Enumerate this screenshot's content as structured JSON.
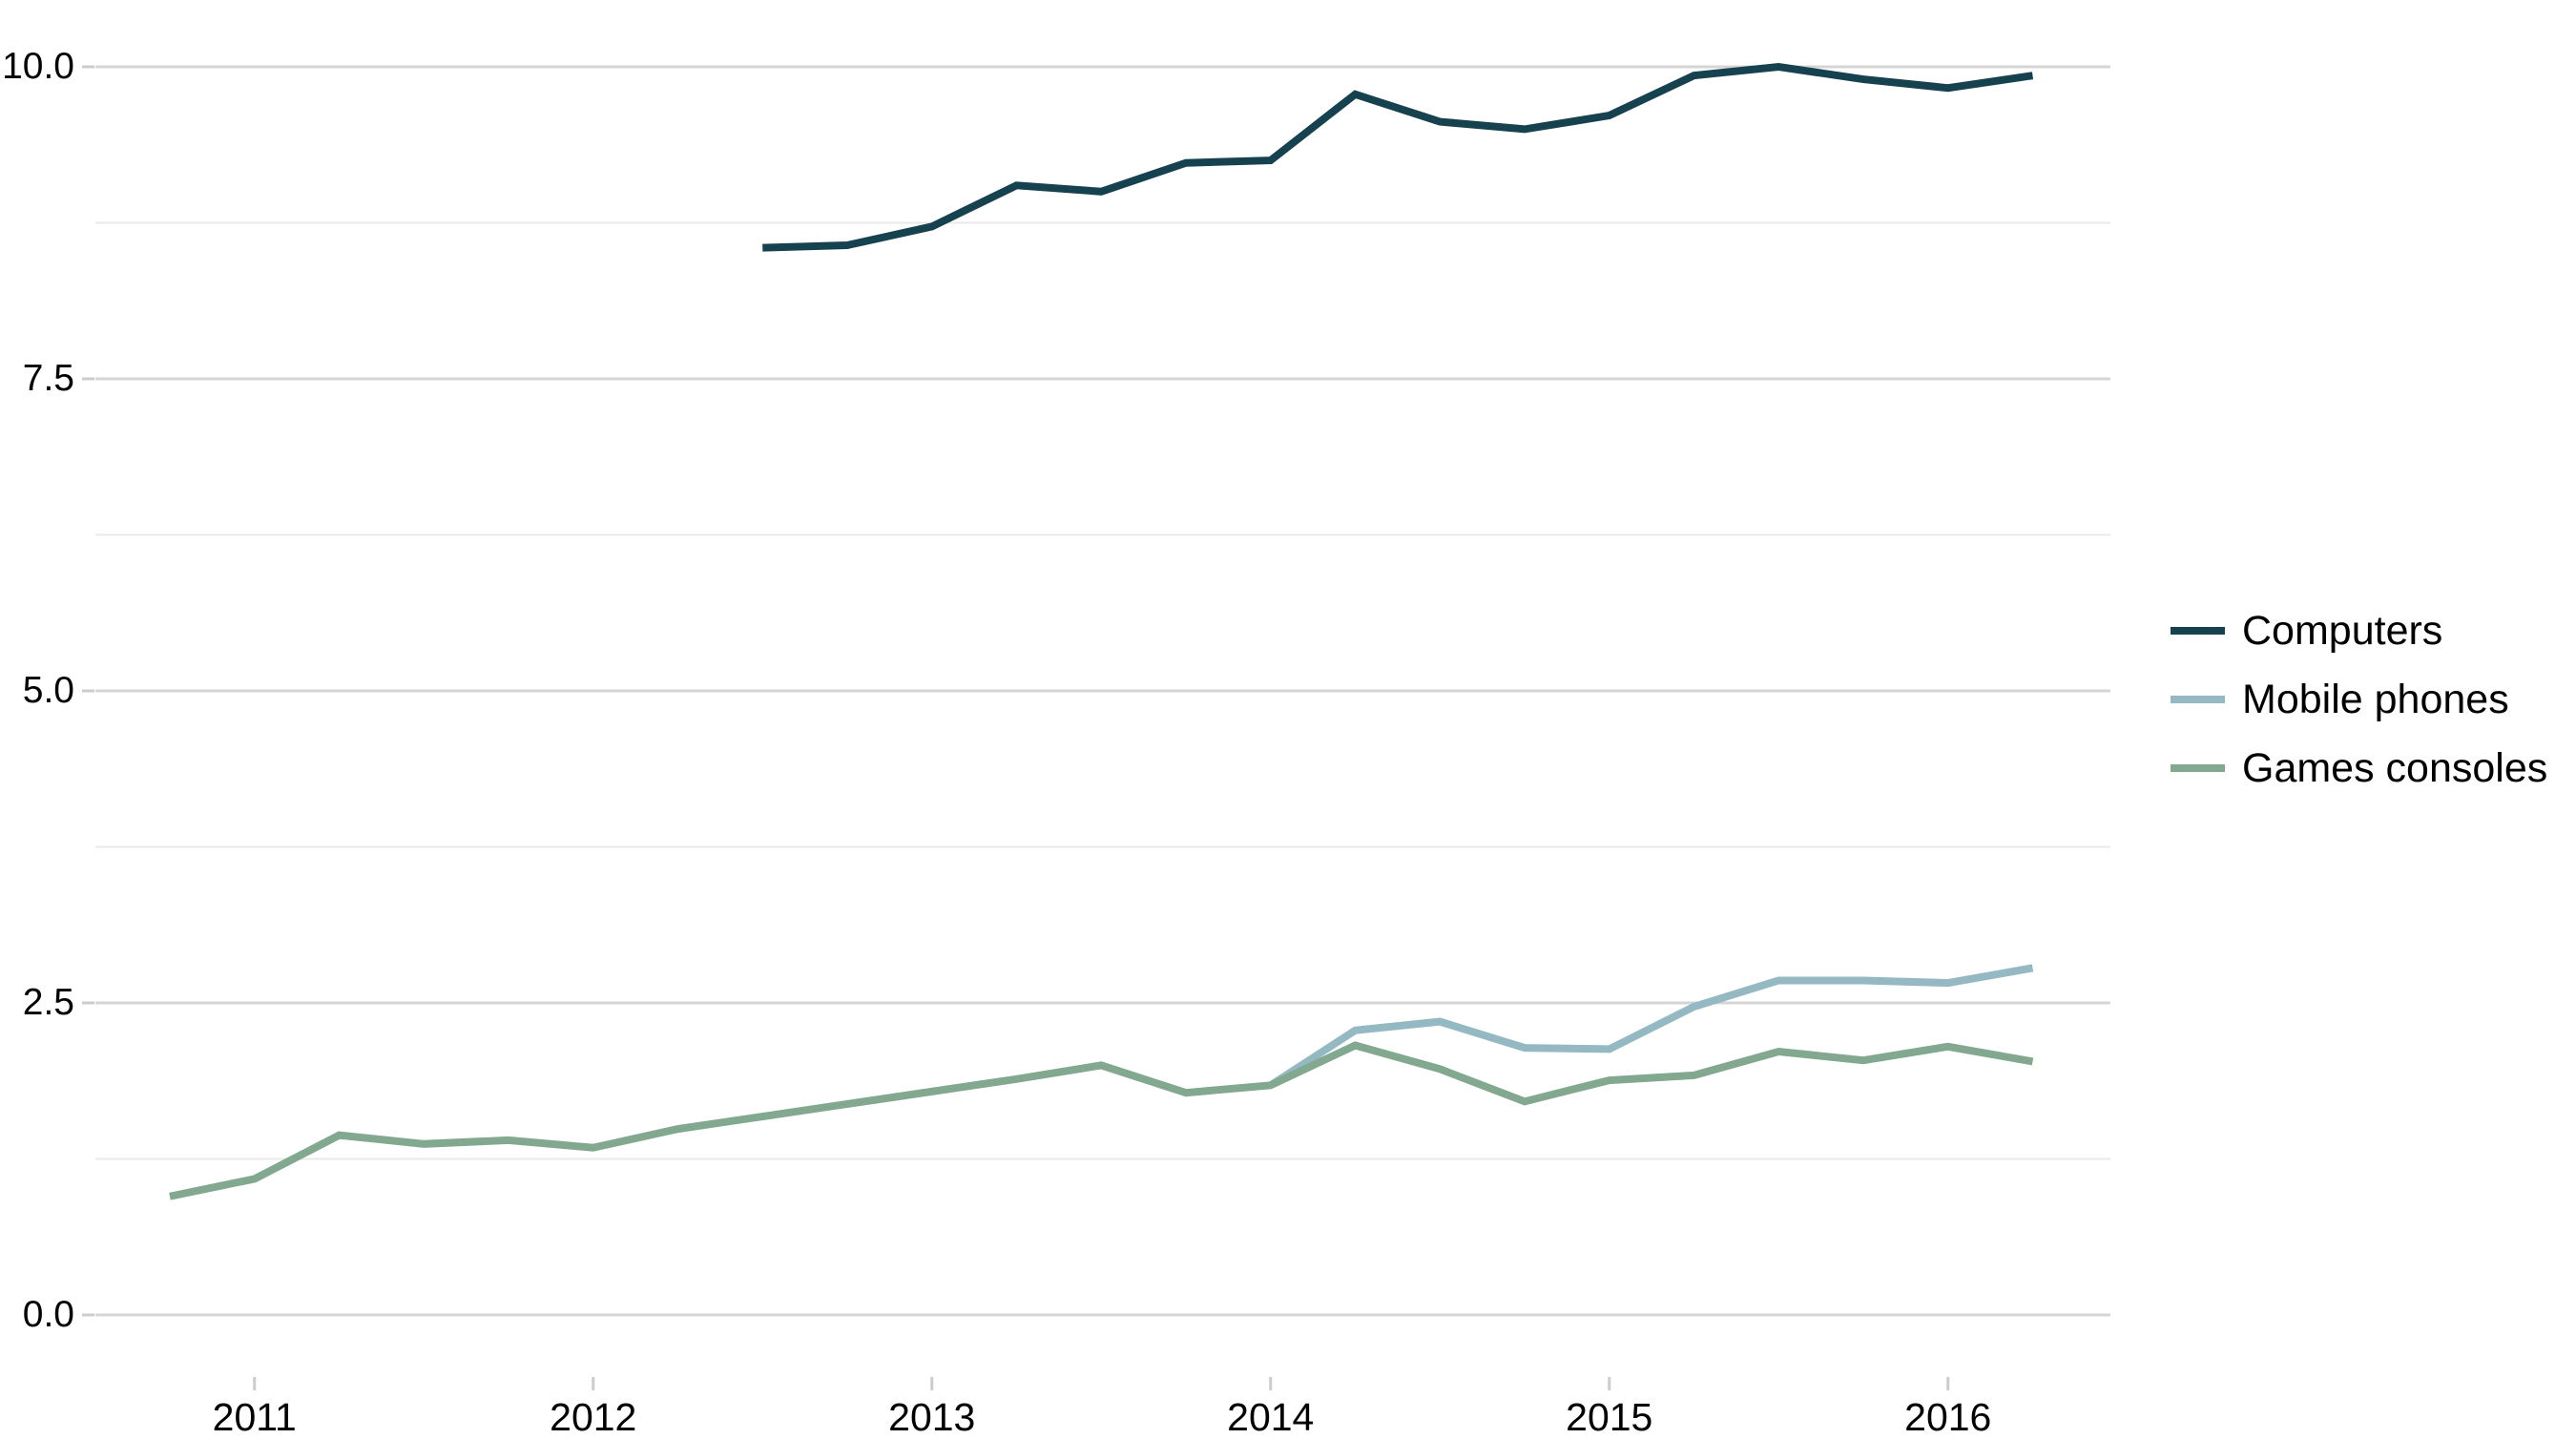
{
  "chart_data": {
    "type": "line",
    "title": "",
    "xlabel": "",
    "ylabel": "",
    "grid": true,
    "legend_position": "right",
    "xlim": [
      2010.5,
      2016.5
    ],
    "ylim": [
      0,
      10
    ],
    "x_tick_labels": [
      "2011",
      "2012",
      "2013",
      "2014",
      "2015",
      "2016"
    ],
    "x_tick_values": [
      2011,
      2012,
      2013,
      2014,
      2015,
      2016
    ],
    "y_tick_labels": [
      "0.0",
      "2.5",
      "5.0",
      "7.5",
      "10.0"
    ],
    "y_tick_values": [
      0,
      2.5,
      5,
      7.5,
      10
    ],
    "y_minor_tick_values": [
      1.25,
      3.75,
      6.25,
      8.75
    ],
    "x_unit": "quarterly (decimal years, Q1=.0 Q2=.25 Q3=.5 Q4=.75)",
    "series": [
      {
        "name": "Computers",
        "color": "#16414e",
        "x": [
          2012.5,
          2012.75,
          2013.0,
          2013.25,
          2013.5,
          2013.75,
          2014.0,
          2014.25,
          2014.5,
          2014.75,
          2015.0,
          2015.25,
          2015.5,
          2015.75,
          2016.0,
          2016.25
        ],
        "values": [
          8.55,
          8.57,
          8.72,
          9.05,
          9.0,
          9.23,
          9.25,
          9.78,
          9.56,
          9.5,
          9.61,
          9.93,
          10.0,
          9.9,
          9.83,
          9.93
        ]
      },
      {
        "name": "Mobile phones",
        "color": "#94b9c3",
        "x": [
          2014.0,
          2014.25,
          2014.5,
          2014.75,
          2015.0,
          2015.25,
          2015.5,
          2015.75,
          2016.0,
          2016.25
        ],
        "values": [
          1.84,
          2.28,
          2.35,
          2.14,
          2.13,
          2.47,
          2.68,
          2.68,
          2.66,
          2.78
        ]
      },
      {
        "name": "Games consoles",
        "color": "#82a88f",
        "x": [
          2010.75,
          2011.0,
          2011.25,
          2011.5,
          2011.75,
          2012.0,
          2012.25,
          2012.5,
          2012.75,
          2013.0,
          2013.25,
          2013.5,
          2013.75,
          2014.0,
          2014.25,
          2014.5,
          2014.75,
          2015.0,
          2015.25,
          2015.5,
          2015.75,
          2016.0,
          2016.25
        ],
        "values": [
          0.95,
          1.09,
          1.44,
          1.37,
          1.4,
          1.34,
          1.49,
          1.59,
          1.69,
          1.79,
          1.89,
          2.0,
          1.78,
          1.84,
          2.16,
          1.97,
          1.71,
          1.88,
          1.92,
          2.11,
          2.04,
          2.15,
          2.03
        ]
      }
    ],
    "style": {
      "major_grid_color": "#d5d5d5",
      "minor_grid_color": "#e9e9e9",
      "tick_color": "#cccccc",
      "line_width": 8
    }
  }
}
